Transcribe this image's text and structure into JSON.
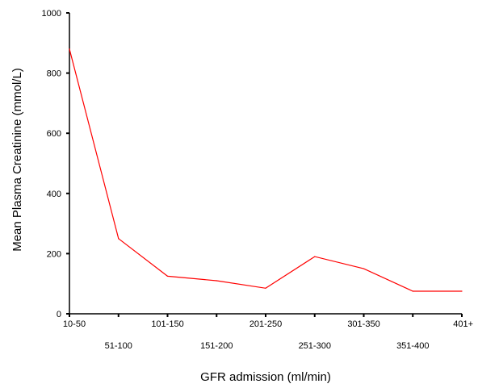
{
  "chart_data": {
    "type": "line",
    "title": "",
    "xlabel": "GFR admission (ml/min)",
    "ylabel": "Mean Plasma Creatinine (mmol/L)",
    "categories": [
      "10-50",
      "51-100",
      "101-150",
      "151-200",
      "201-250",
      "251-300",
      "301-350",
      "351-400",
      "401+"
    ],
    "series": [
      {
        "values": [
          880,
          250,
          125,
          110,
          85,
          190,
          150,
          75,
          75
        ],
        "color": "#ff0000"
      }
    ],
    "ylim": [
      0,
      1000
    ],
    "yticks": [
      0,
      200,
      400,
      600,
      800,
      1000
    ],
    "grid": false,
    "legend": "none"
  }
}
